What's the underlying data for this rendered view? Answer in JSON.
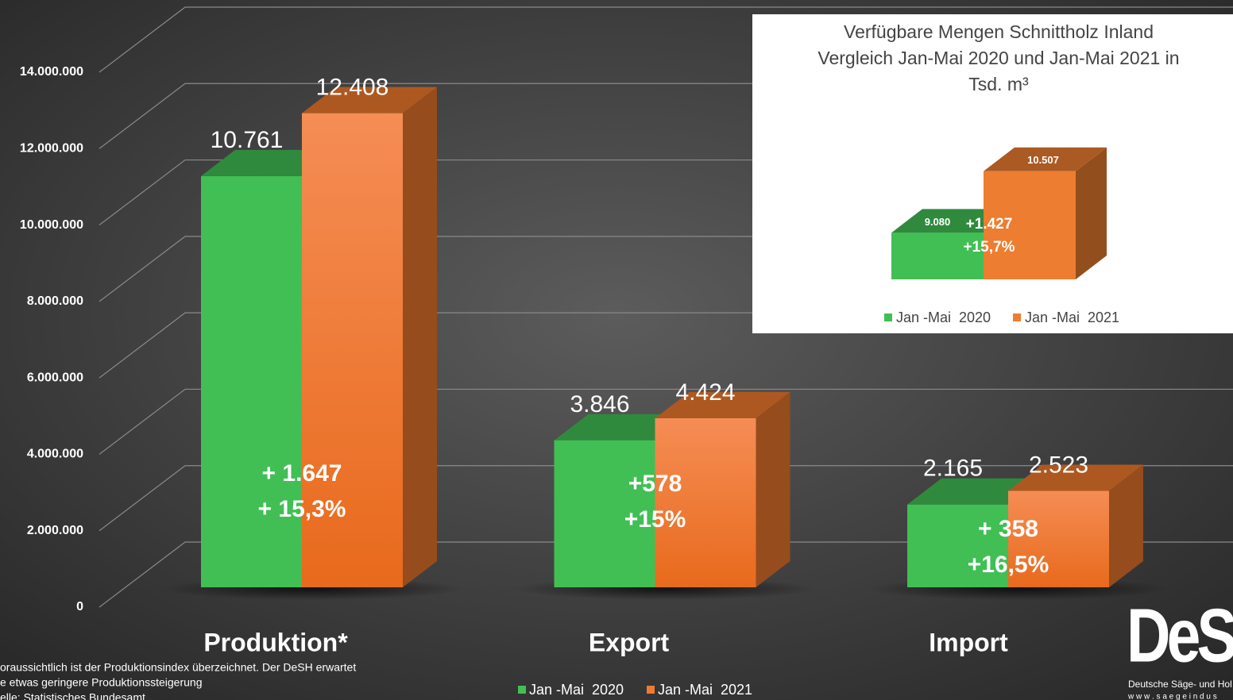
{
  "chart_data": [
    {
      "type": "bar",
      "categories": [
        "Produktion*",
        "Export",
        "Import"
      ],
      "series": [
        {
          "name": "Jan -Mai  2020",
          "color": "#41bf55",
          "values": [
            10761000,
            3846000,
            2165000
          ],
          "value_labels": [
            "10.761",
            "3.846",
            "2.165"
          ]
        },
        {
          "name": "Jan -Mai  2021",
          "color": "#f27a2e",
          "values": [
            12408000,
            4424000,
            2523000
          ],
          "value_labels": [
            "12.408",
            "4.424",
            "2.523"
          ]
        }
      ],
      "annotations": [
        [
          "+ 1.647",
          "+ 15,3%"
        ],
        [
          "+578",
          "+15%"
        ],
        [
          "+ 358",
          "+16,5%"
        ]
      ],
      "ylim": [
        0,
        14000000
      ],
      "yticks": [
        0,
        {
          "value": 2000000,
          "label": "2.000.000"
        },
        {
          "value": 4000000,
          "label": "4.000.000"
        },
        {
          "value": 6000000,
          "label": "6.000.000"
        },
        {
          "value": 8000000,
          "label": "8.000.000"
        },
        {
          "value": 10000000,
          "label": "10.000.000"
        },
        {
          "value": 12000000,
          "label": "12.000.000"
        },
        {
          "value": 14000000,
          "label": "14.000.000"
        }
      ],
      "grid": true,
      "legend": "bottom",
      "notes": [
        "oraussichtlich ist der Produktionsindex überzeichnet. Der DeSH erwartet",
        "e etwas geringere Produktionssteigerung",
        "elle: Statistisches Bundesamt"
      ]
    },
    {
      "type": "bar",
      "title": [
        "Verfügbare Mengen Schnittholz Inland",
        "Vergleich Jan-Mai 2020 und Jan-Mai 2021 in",
        "Tsd. m³"
      ],
      "categories": [
        null
      ],
      "series": [
        {
          "name": "Jan -Mai  2020",
          "color": "#41bf55",
          "values": [
            9080
          ],
          "value_labels": [
            "9.080"
          ]
        },
        {
          "name": "Jan -Mai  2021",
          "color": "#ed7d31",
          "values": [
            10507
          ],
          "value_labels": [
            "10.507"
          ]
        }
      ],
      "annotations": [
        [
          "+1.427",
          "+15,7%"
        ]
      ],
      "ylim": [
        8000,
        11000
      ],
      "legend": "bottom"
    }
  ],
  "logo": {
    "name": "DeSH",
    "subtitle": "Deutsche Säge- und Hol",
    "url": "w w w . s a e g e i n d u s"
  }
}
